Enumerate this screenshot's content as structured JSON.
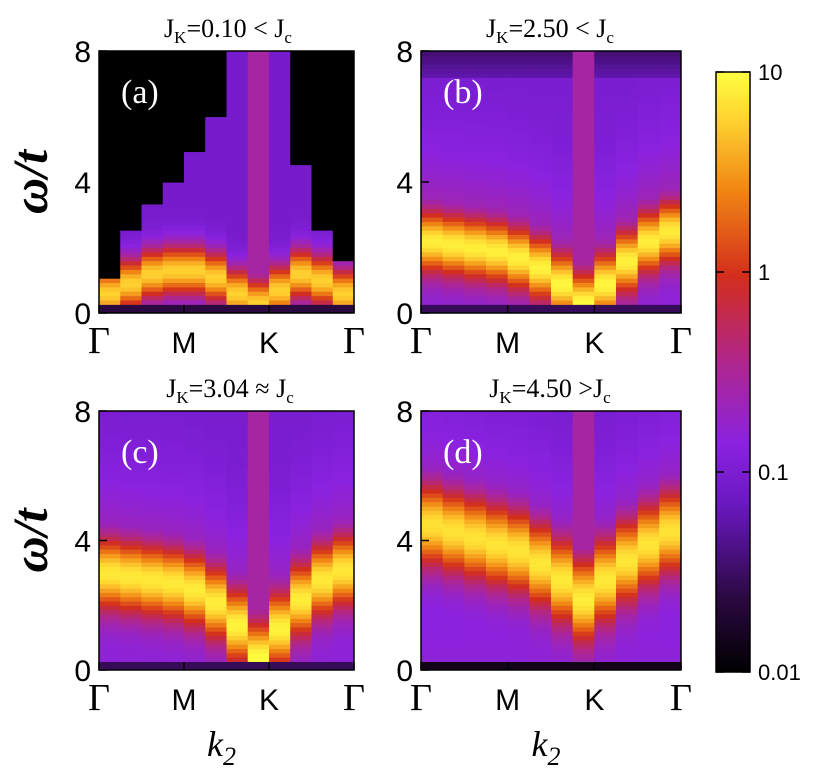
{
  "chart_data": [
    {
      "type": "heatmap",
      "panel_label": "(a)",
      "title": "J",
      "title_sub": "K",
      "title_rest": "=0.10 < J",
      "title_rest_sub": "c",
      "ylabel": "ω/t",
      "ylim": [
        0,
        8
      ],
      "yticks": [
        "0",
        "4",
        "8"
      ],
      "xticks": [
        "Γ",
        "M",
        "K",
        "Γ"
      ],
      "x": [
        "Γ",
        "",
        "",
        "",
        "M",
        "",
        "",
        "K",
        "",
        "",
        "",
        "Γ"
      ],
      "intensity_dominant_band_center": [
        0.6,
        0.9,
        1.2,
        1.3,
        1.3,
        1.1,
        0.6,
        0.3,
        0.7,
        1.2,
        1.0,
        0.6
      ],
      "upper_cutoff": [
        1.1,
        2.6,
        3.3,
        4.0,
        5.0,
        6.0,
        8.0,
        8.0,
        8.0,
        4.5,
        2.6,
        1.6
      ]
    },
    {
      "type": "heatmap",
      "panel_label": "(b)",
      "title": "J",
      "title_sub": "K",
      "title_rest": "=2.50 < J",
      "title_rest_sub": "c",
      "ylim": [
        0,
        8
      ],
      "yticks": [
        "0",
        "4",
        "8"
      ],
      "xticks": [
        "Γ",
        "M",
        "K",
        "Γ"
      ],
      "intensity_dominant_band_center": [
        2.2,
        2.1,
        2.0,
        1.9,
        1.7,
        1.4,
        0.9,
        0.3,
        0.9,
        1.6,
        2.2,
        2.5
      ]
    },
    {
      "type": "heatmap",
      "panel_label": "(c)",
      "title": "J",
      "title_sub": "K",
      "title_rest": "=3.04 ≈ J",
      "title_rest_sub": "c",
      "ylabel": "ω/t",
      "xlabel": "k",
      "xlabel_sub": "2",
      "ylim": [
        0,
        8
      ],
      "yticks": [
        "0",
        "4",
        "8"
      ],
      "xticks": [
        "Γ",
        "M",
        "K",
        "Γ"
      ],
      "intensity_dominant_band_center": [
        3.0,
        2.9,
        2.8,
        2.7,
        2.5,
        2.1,
        1.4,
        0.4,
        1.3,
        2.2,
        2.8,
        3.1
      ]
    },
    {
      "type": "heatmap",
      "panel_label": "(d)",
      "title": "J",
      "title_sub": "K",
      "title_rest": "=4.50 >J",
      "title_rest_sub": "c",
      "xlabel": "k",
      "xlabel_sub": "2",
      "ylim": [
        0,
        8
      ],
      "yticks": [
        "0",
        "4",
        "8"
      ],
      "xticks": [
        "Γ",
        "M",
        "K",
        "Γ"
      ],
      "intensity_dominant_band_center": [
        4.5,
        4.3,
        4.1,
        3.9,
        3.7,
        3.3,
        2.8,
        2.2,
        2.8,
        3.4,
        3.9,
        4.3
      ]
    }
  ],
  "colorbar": {
    "scale": "log",
    "range": [
      0.01,
      10
    ],
    "ticks": [
      "10",
      "1",
      "0.1",
      "0.01"
    ],
    "colormap": [
      "#000000",
      "#3a0a55",
      "#7a1fd6",
      "#b02cc4",
      "#d4281e",
      "#f07a12",
      "#ffd23c",
      "#ffff40"
    ]
  }
}
